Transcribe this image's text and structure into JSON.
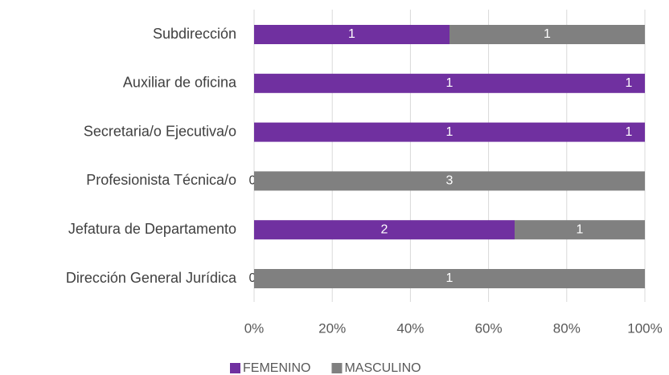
{
  "chart_data": {
    "type": "stacked_bar_percent",
    "categories": [
      "Subdirección",
      "Auxiliar de oficina",
      "Secretaria/o Ejecutiva/o",
      "Profesionista Técnica/o",
      "Jefatura de Departamento",
      "Dirección General Jurídica"
    ],
    "series": [
      {
        "name": "FEMENINO",
        "color": "#7030a0",
        "values": [
          1,
          1,
          1,
          0,
          2,
          0
        ]
      },
      {
        "name": "MASCULINO",
        "color": "#808080",
        "values": [
          1,
          0,
          0,
          3,
          1,
          1
        ]
      }
    ],
    "annotations": [
      {
        "category": "Auxiliar de oficina",
        "text": "1"
      },
      {
        "category": "Secretaria/o Ejecutiva/o",
        "text": "1"
      }
    ],
    "xlim": [
      0,
      100
    ],
    "xticks": [
      {
        "value": 0,
        "label": "0%"
      },
      {
        "value": 20,
        "label": "20%"
      },
      {
        "value": 40,
        "label": "40%"
      },
      {
        "value": 60,
        "label": "60%"
      },
      {
        "value": 80,
        "label": "80%"
      },
      {
        "value": 100,
        "label": "100%"
      }
    ],
    "grid": true,
    "legend": "bottom"
  }
}
